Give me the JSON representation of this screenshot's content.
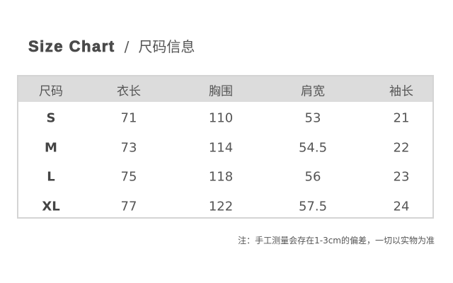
{
  "title": {
    "en": "Size Chart",
    "sep": "/",
    "cn": "尺码信息"
  },
  "table": {
    "headers": [
      "尺码",
      "衣长",
      "胸围",
      "肩宽",
      "袖长"
    ],
    "rows": [
      [
        "S",
        "71",
        "110",
        "53",
        "21"
      ],
      [
        "M",
        "73",
        "114",
        "54.5",
        "22"
      ],
      [
        "L",
        "75",
        "118",
        "56",
        "23"
      ],
      [
        "XL",
        "77",
        "122",
        "57.5",
        "24"
      ]
    ]
  },
  "note": "注：手工测量会存在1-3cm的偏差，一切以实物为准"
}
